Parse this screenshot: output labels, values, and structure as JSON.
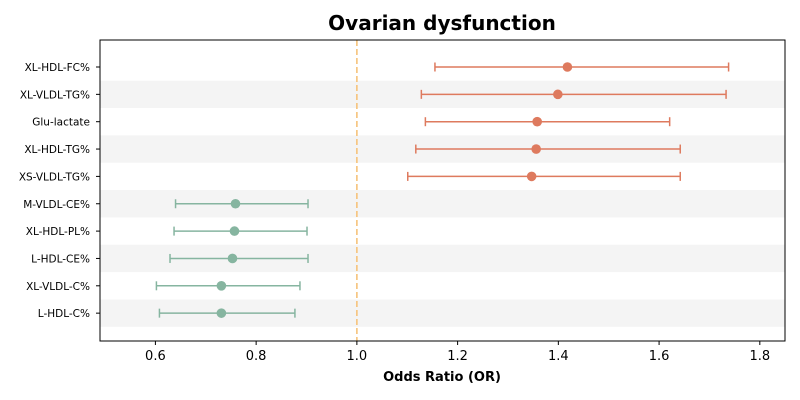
{
  "chart_data": {
    "type": "forest",
    "title": "Ovarian dysfunction",
    "xlabel": "Odds Ratio (OR)",
    "ylabel": "",
    "xlim": [
      0.49,
      1.85
    ],
    "xticks": [
      0.6,
      0.8,
      1.0,
      1.2,
      1.4,
      1.6,
      1.8
    ],
    "xtick_labels": [
      "0.6",
      "0.8",
      "1.0",
      "1.2",
      "1.4",
      "1.6",
      "1.8"
    ],
    "reference_line": 1.0,
    "reference_color": "#f6c37a",
    "colors": {
      "risk": "#de7a5e",
      "protective": "#86b5a0",
      "band": "#f4f4f4"
    },
    "rows": [
      {
        "label": "XL-HDL-FC%",
        "or": 1.418,
        "lo": 1.155,
        "hi": 1.738,
        "group": "risk"
      },
      {
        "label": "XL-VLDL-TG%",
        "or": 1.399,
        "lo": 1.128,
        "hi": 1.733,
        "group": "risk"
      },
      {
        "label": "Glu-lactate",
        "or": 1.358,
        "lo": 1.136,
        "hi": 1.621,
        "group": "risk"
      },
      {
        "label": "XL-HDL-TG%",
        "or": 1.356,
        "lo": 1.117,
        "hi": 1.642,
        "group": "risk"
      },
      {
        "label": "XS-VLDL-TG%",
        "or": 1.347,
        "lo": 1.101,
        "hi": 1.642,
        "group": "risk"
      },
      {
        "label": "M-VLDL-CE%",
        "or": 0.759,
        "lo": 0.64,
        "hi": 0.903,
        "group": "protective"
      },
      {
        "label": "XL-HDL-PL%",
        "or": 0.757,
        "lo": 0.637,
        "hi": 0.901,
        "group": "protective"
      },
      {
        "label": "L-HDL-CE%",
        "or": 0.753,
        "lo": 0.629,
        "hi": 0.903,
        "group": "protective"
      },
      {
        "label": "XL-VLDL-C%",
        "or": 0.731,
        "lo": 0.602,
        "hi": 0.887,
        "group": "protective"
      },
      {
        "label": "L-HDL-C%",
        "or": 0.731,
        "lo": 0.608,
        "hi": 0.877,
        "group": "protective"
      }
    ]
  }
}
